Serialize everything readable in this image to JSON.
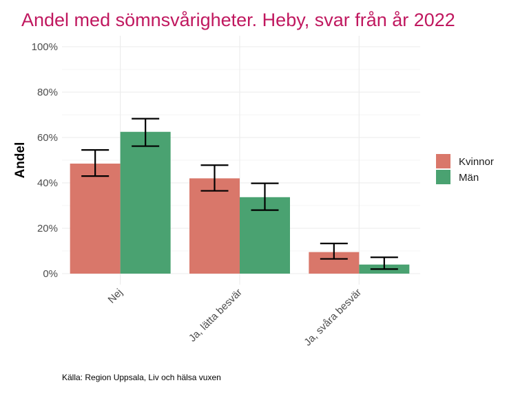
{
  "chart_data": {
    "type": "bar",
    "title": "Andel med sömnsvårigheter. Heby, svar från år 2022",
    "xlabel": "",
    "ylabel": "Andel",
    "categories": [
      "Nej",
      "Ja, lätta besvär",
      "Ja, svåra besvär"
    ],
    "ylim": [
      0,
      1
    ],
    "y_ticks": [
      0,
      0.2,
      0.4,
      0.6,
      0.8,
      1.0
    ],
    "y_tick_labels": [
      "0%",
      "20%",
      "40%",
      "60%",
      "80%",
      "100%"
    ],
    "grid": true,
    "legend_position": "right",
    "series": [
      {
        "name": "Kvinnor",
        "color": "#d9776a",
        "values": [
          0.485,
          0.42,
          0.095
        ],
        "error_low": [
          0.43,
          0.365,
          0.065
        ],
        "error_high": [
          0.545,
          0.478,
          0.133
        ]
      },
      {
        "name": "Män",
        "color": "#4aa271",
        "values": [
          0.625,
          0.337,
          0.04
        ],
        "error_low": [
          0.562,
          0.28,
          0.02
        ],
        "error_high": [
          0.683,
          0.398,
          0.072
        ]
      }
    ],
    "caption": "Källa: Region Uppsala, Liv och hälsa vuxen"
  }
}
